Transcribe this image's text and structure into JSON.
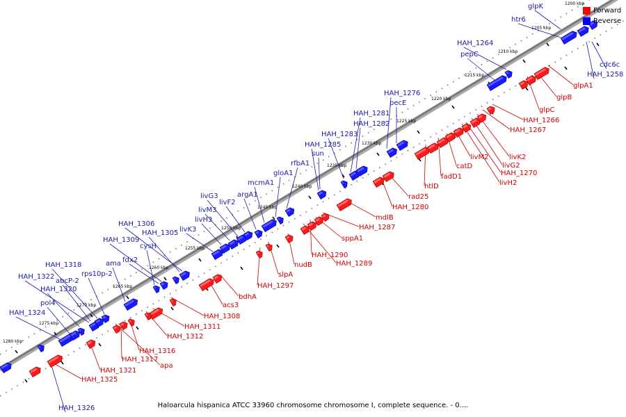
{
  "title": "Haloarcula hispanica ATCC 33960 chromosome chromosome I, complete sequence. - 0....",
  "legend": {
    "forward_label": "Forward",
    "reverse_label": "Reverse",
    "forward_color": "#ff0000",
    "reverse_color": "#0000ff"
  },
  "colors": {
    "backbone": "#7a7a7a",
    "forward_label_color": "#cc0000",
    "reverse_label_color": "#1a1aa6",
    "tick_color": "#000000"
  },
  "scale_ticks": [
    "1200 kbp",
    "1205 kbp",
    "1210 kbp",
    "1215 kbp",
    "1220 kbp",
    "1225 kbp",
    "1230 kbp",
    "1235 kbp",
    "1240 kbp",
    "1245 kbp",
    "1250 kbp",
    "1255 kbp",
    "1260 kbp",
    "1265 kbp",
    "1270 kbp",
    "1275 kbp",
    "1280 kbp"
  ],
  "reverse_genes": [
    "glpK",
    "htr6",
    "cdc6c",
    "HAH_1258",
    "HAH_1264",
    "pepC",
    "HAH_1276",
    "pecE",
    "HAH_1281",
    "HAH_1282",
    "HAH_1283",
    "HAH_1285",
    "sun",
    "rfbA1",
    "gloA1",
    "mcmA1",
    "argA1",
    "livF2",
    "livG3",
    "livM3",
    "livH3",
    "livK3",
    "HAH_1305",
    "HAH_1306",
    "HAH_1309",
    "cysH",
    "fdx2",
    "ama",
    "rps10p-2",
    "HAH_1318",
    "HAH_1322",
    "abcP-2",
    "HAH_1320",
    "pol4",
    "HAH_1324",
    "HAH_1326"
  ],
  "forward_genes": [
    "glpA1",
    "glpB",
    "glpC",
    "HAH_1266",
    "HAH_1267",
    "livK2",
    "livG2",
    "HAH_1270",
    "livH2",
    "livM2",
    "catD",
    "fadD1",
    "htlD",
    "rad25",
    "HAH_1280",
    "mdlB",
    "HAH_1287",
    "sppA1",
    "HAH_1290",
    "HAH_1289",
    "nudB",
    "slpA",
    "HAH_1297",
    "bdhA",
    "acs3",
    "HAH_1308",
    "HAH_1311",
    "HAH_1312",
    "HAH_1316",
    "HAH_1317",
    "apa",
    "HAH_1321",
    "HAH_1325"
  ]
}
